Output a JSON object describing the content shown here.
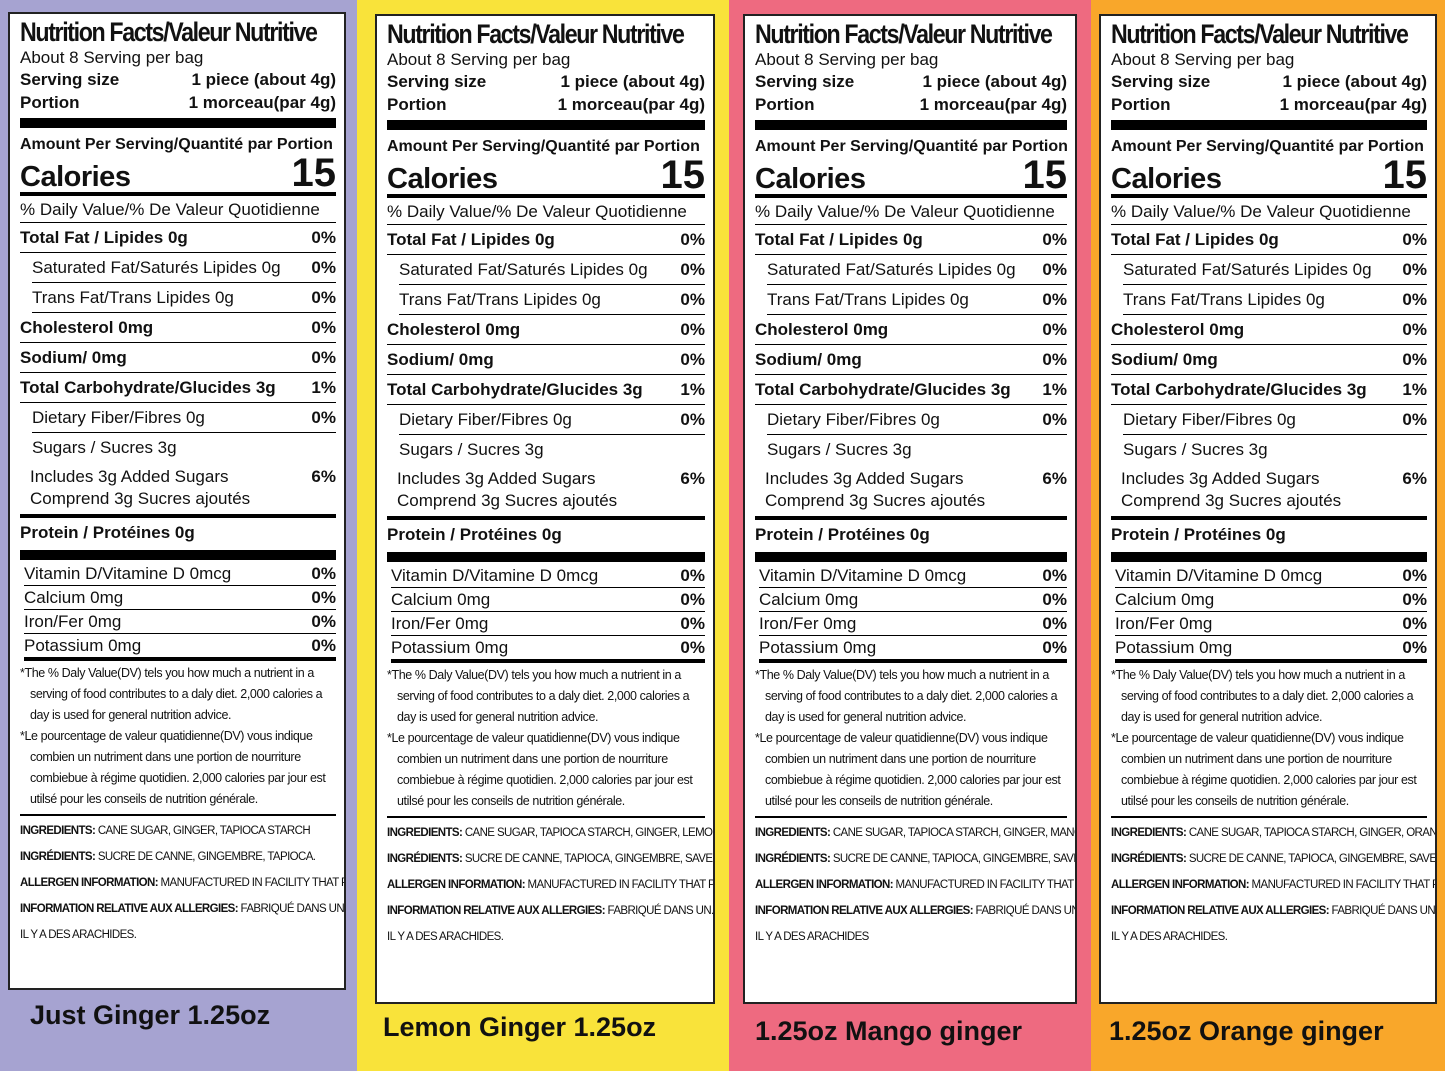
{
  "panels": [
    {
      "bg": "#a6a3d1",
      "title": "Nutrition Facts/Valeur Nutritive",
      "servings_per": "About  8  Serving per bag",
      "serving_size_label": "Serving size",
      "serving_size_value": "1 piece (about 4g)",
      "portion_label": "Portion",
      "portion_value": "1 morceau(par 4g)",
      "amount_per": "Amount Per Serving/Quantité  par Portion",
      "calories_label": "Calories",
      "calories_value": "15",
      "dv_header": "% Daily Value/% De Valeur Quotidienne",
      "total_fat": "Total Fat / Lipides 0g",
      "total_fat_pct": "0%",
      "sat_fat": "Saturated Fat/Saturés Lipides  0g",
      "sat_fat_pct": "0%",
      "trans_fat": "Trans Fat/Trans Lipides 0g",
      "trans_fat_pct": "0%",
      "cholesterol": "Cholesterol  0mg",
      "cholesterol_pct": "0%",
      "sodium": "Sodium/  0mg",
      "sodium_pct": "0%",
      "carb": "Total Carbohydrate/Glucides 3g",
      "carb_pct": "1%",
      "fiber": "Dietary Fiber/Fibres 0g",
      "fiber_pct": "0%",
      "sugars": "Sugars / Sucres 3g",
      "added_1": "Includes 3g Added Sugars",
      "added_2": "Comprend 3g Sucres ajoutés",
      "added_pct": "6%",
      "protein": "Protein / Protéines 0g",
      "vitd": "Vitamin D/Vitamine D 0mcg",
      "vitd_pct": "0%",
      "calcium": "Calcium 0mg",
      "calcium_pct": "0%",
      "iron": "Iron/Fer 0mg",
      "iron_pct": "0%",
      "potassium": "Potassium 0mg",
      "potassium_pct": "0%",
      "foot_en": "*The % Daly Value(DV) tels you how much a nutrient in a serving of food contributes to a daly diet. 2,000 calories a day is used for general nutrition advice.",
      "foot_fr": "*Le pourcentage de valeur quatidienne(DV) vous indique combien un nutriment dans une portion de nourriture combiebue à régime quotidien. 2,000 calories par jour est utilsé pour les conseils de nutrition générale.",
      "ing_en_k": "INGREDIENTS:",
      "ing_en": " CANE SUGAR, GINGER, TAPIOCA STARCH",
      "ing_fr_k": "INGRÉDIENTS:",
      "ing_fr": " SUCRE DE CANNE, GINGEMBRE, TAPIOCA.",
      "all_en_k": "ALLERGEN INFORMATION:",
      "all_en": " MANUFACTURED IN FACILITY THAT PROCESSES PEANUTS.",
      "all_fr_k": "INFORMATION RELATIVE AUX ALLERGIES:",
      "all_fr": " FABRIQUÉ DANS UN ENDROIT OÙ",
      "all_fr_2": "IL Y A DES ARACHIDES.",
      "flavor": "Just Ginger  1.25oz"
    },
    {
      "bg": "#f9e33a",
      "title": "Nutrition Facts/Valeur Nutritive",
      "servings_per": "About  8  Serving per bag",
      "serving_size_label": "Serving size",
      "serving_size_value": "1 piece (about 4g)",
      "portion_label": "Portion",
      "portion_value": "1 morceau(par 4g)",
      "amount_per": "Amount Per Serving/Quantité  par Portion",
      "calories_label": "Calories",
      "calories_value": "15",
      "dv_header": "% Daily Value/% De Valeur Quotidienne",
      "total_fat": "Total Fat / Lipides 0g",
      "total_fat_pct": "0%",
      "sat_fat": "Saturated Fat/Saturés Lipides  0g",
      "sat_fat_pct": "0%",
      "trans_fat": "Trans Fat/Trans Lipides 0g",
      "trans_fat_pct": "0%",
      "cholesterol": "Cholesterol  0mg",
      "cholesterol_pct": "0%",
      "sodium": "Sodium/  0mg",
      "sodium_pct": "0%",
      "carb": "Total Carbohydrate/Glucides 3g",
      "carb_pct": "1%",
      "fiber": "Dietary Fiber/Fibres 0g",
      "fiber_pct": "0%",
      "sugars": "Sugars / Sucres 3g",
      "added_1": "Includes 3g Added Sugars",
      "added_2": "Comprend 3g Sucres ajoutés",
      "added_pct": "6%",
      "protein": "Protein / Protéines 0g",
      "vitd": "Vitamin D/Vitamine D 0mcg",
      "vitd_pct": "0%",
      "calcium": "Calcium 0mg",
      "calcium_pct": "0%",
      "iron": "Iron/Fer 0mg",
      "iron_pct": "0%",
      "potassium": "Potassium 0mg",
      "potassium_pct": "0%",
      "foot_en": "*The % Daly Value(DV) tels you how much a nutrient in a serving of food contributes to a daly diet. 2,000 calories a day is used for general nutrition advice.",
      "foot_fr": "*Le pourcentage de valeur quatidienne(DV) vous indique combien un nutriment dans une portion de nourriture combiebue à régime quotidien. 2,000 calories par jour est utilsé pour les conseils de nutrition générale.",
      "ing_en_k": "INGREDIENTS:",
      "ing_en": " CANE SUGAR, TAPIOCA STARCH, GINGER, LEMON FLAVOR.",
      "ing_fr_k": "INGRÉDIENTS:",
      "ing_fr": " SUCRE DE CANNE, TAPIOCA, GINGEMBRE, SAVEUR CITRON.",
      "all_en_k": "ALLERGEN INFORMATION:",
      "all_en": " MANUFACTURED IN FACILITY THAT PROCESSES PEANUTS.",
      "all_fr_k": "INFORMATION RELATIVE AUX ALLERGIES:",
      "all_fr": " FABRIQUÉ DANS UN.ENDROIT OÙ",
      "all_fr_2": "IL Y A DES ARACHIDES.",
      "flavor": "Lemon Ginger  1.25oz"
    },
    {
      "bg": "#ee6a80",
      "title": "Nutrition Facts/Valeur Nutritive",
      "servings_per": "About  8  Serving per bag",
      "serving_size_label": "Serving size",
      "serving_size_value": "1 piece (about 4g)",
      "portion_label": "Portion",
      "portion_value": "1 morceau(par 4g)",
      "amount_per": "Amount Per Serving/Quantité  par Portion",
      "calories_label": "Calories",
      "calories_value": "15",
      "dv_header": "% Daily Value/% De Valeur Quotidienne",
      "total_fat": "Total Fat / Lipides 0g",
      "total_fat_pct": "0%",
      "sat_fat": "Saturated Fat/Saturés Lipides  0g",
      "sat_fat_pct": "0%",
      "trans_fat": "Trans Fat/Trans Lipides 0g",
      "trans_fat_pct": "0%",
      "cholesterol": "Cholesterol  0mg",
      "cholesterol_pct": "0%",
      "sodium": "Sodium/  0mg",
      "sodium_pct": "0%",
      "carb": "Total Carbohydrate/Glucides 3g",
      "carb_pct": "1%",
      "fiber": "Dietary Fiber/Fibres 0g",
      "fiber_pct": "0%",
      "sugars": "Sugars / Sucres 3g",
      "added_1": "Includes 3g Added Sugars",
      "added_2": "Comprend 3g Sucres ajoutés",
      "added_pct": "6%",
      "protein": "Protein / Protéines 0g",
      "vitd": "Vitamin D/Vitamine D 0mcg",
      "vitd_pct": "0%",
      "calcium": "Calcium 0mg",
      "calcium_pct": "0%",
      "iron": "Iron/Fer 0mg",
      "iron_pct": "0%",
      "potassium": "Potassium 0mg",
      "potassium_pct": "0%",
      "foot_en": "*The % Daly Value(DV) tels you how much a nutrient in a serving of food contributes to a daly diet. 2,000 calories a day is used for general nutrition advice.",
      "foot_fr": "*Le pourcentage de valeur quatidienne(DV) vous indique combien un nutriment dans une portion de nourriture combiebue à régime quotidien. 2,000 calories par jour est utilsé pour les conseils de nutrition générale.",
      "ing_en_k": "INGREDIENTS:",
      "ing_en": " CANE SUGAR, TAPIOCA STARCH, GINGER, MANGO FLAVOR.",
      "ing_fr_k": "INGRÉDIENTS:",
      "ing_fr": " SUCRE DE CANNE, TAPIOCA, GINGEMBRE, SAVEUR DE MANGUES.",
      "all_en_k": "ALLERGEN INFORMATION:",
      "all_en": " MANUFACTURED IN FACILITY THAT PROCESSES PEANUTS.",
      "all_fr_k": "INFORMATION RELATIVE AUX ALLERGIES:",
      "all_fr": " FABRIQUÉ DANS UN.ENDROIT OÙ",
      "all_fr_2": "IL Y A DES ARACHIDES",
      "flavor": "1.25oz Mango ginger"
    },
    {
      "bg": "#f9a72a",
      "title": "Nutrition Facts/Valeur Nutritive",
      "servings_per": "About  8  Serving per bag",
      "serving_size_label": "Serving size",
      "serving_size_value": "1 piece (about 4g)",
      "portion_label": "Portion",
      "portion_value": "1 morceau(par 4g)",
      "amount_per": "Amount Per Serving/Quantité  par Portion",
      "calories_label": "Calories",
      "calories_value": "15",
      "dv_header": "% Daily Value/% De Valeur Quotidienne",
      "total_fat": "Total Fat / Lipides 0g",
      "total_fat_pct": "0%",
      "sat_fat": "Saturated Fat/Saturés Lipides  0g",
      "sat_fat_pct": "0%",
      "trans_fat": "Trans Fat/Trans Lipides 0g",
      "trans_fat_pct": "0%",
      "cholesterol": "Cholesterol  0mg",
      "cholesterol_pct": "0%",
      "sodium": "Sodium/  0mg",
      "sodium_pct": "0%",
      "carb": "Total Carbohydrate/Glucides 3g",
      "carb_pct": "1%",
      "fiber": "Dietary Fiber/Fibres 0g",
      "fiber_pct": "0%",
      "sugars": "Sugars / Sucres 3g",
      "added_1": "Includes 3g Added Sugars",
      "added_2": "Comprend 3g Sucres ajoutés",
      "added_pct": "6%",
      "protein": "Protein / Protéines 0g",
      "vitd": "Vitamin D/Vitamine D 0mcg",
      "vitd_pct": "0%",
      "calcium": "Calcium 0mg",
      "calcium_pct": "0%",
      "iron": "Iron/Fer 0mg",
      "iron_pct": "0%",
      "potassium": "Potassium 0mg",
      "potassium_pct": "0%",
      "foot_en": "*The % Daly Value(DV) tels you how much a nutrient in a serving of food contributes to a daly diet. 2,000 calories a day is used for general nutrition advice.",
      "foot_fr": "*Le pourcentage de valeur quatidienne(DV) vous indique combien un nutriment dans une portion de nourriture combiebue à régime quotidien. 2,000 calories par jour est utilsé pour les conseils de nutrition générale.",
      "ing_en_k": "INGREDIENTS:",
      "ing_en": " CANE SUGAR, TAPIOCA STARCH, GINGER, ORANGE FLAVOR.",
      "ing_fr_k": "INGRÉDIENTS:",
      "ing_fr": " SUCRE DE CANNE, TAPIOCA, GINGEMBRE, SAVEUR D'ORANGES.",
      "all_en_k": "ALLERGEN INFORMATION:",
      "all_en": " MANUFACTURED IN FACILITY THAT PROCESSES PEANUTS.",
      "all_fr_k": "INFORMATION RELATIVE AUX ALLERGIES:",
      "all_fr": " FABRIQUÉ DANS UN.ENDROIT OÙ",
      "all_fr_2": "IL Y A DES ARACHIDES.",
      "flavor": "1.25oz Orange ginger"
    }
  ]
}
